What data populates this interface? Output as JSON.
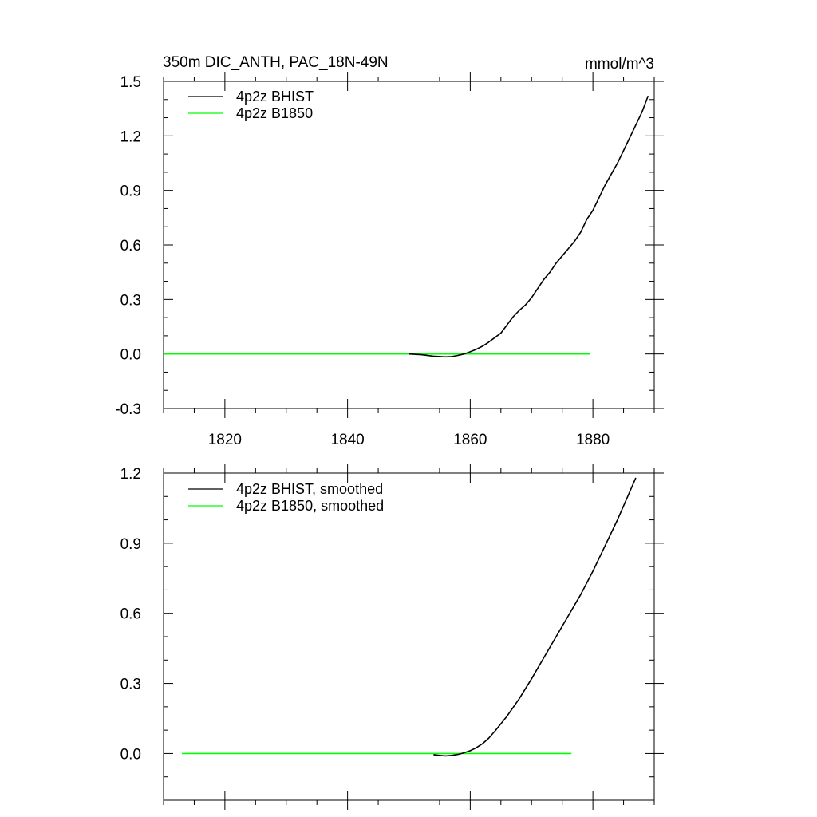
{
  "chart_data": [
    {
      "type": "line",
      "title": "350m DIC_ANTH, PAC_18N-49N",
      "units_label": "mmol/m^3",
      "xlim": [
        1810,
        1890
      ],
      "ylim": [
        -0.3,
        1.5
      ],
      "x_ticks": [
        1820,
        1840,
        1860,
        1880
      ],
      "x_tick_labels": [
        "1820",
        "1840",
        "1860",
        "1880"
      ],
      "y_ticks": [
        -0.3,
        0.0,
        0.3,
        0.6,
        0.9,
        1.2,
        1.5
      ],
      "y_tick_labels": [
        "-0.3",
        "0.0",
        "0.3",
        "0.6",
        "0.9",
        "1.2",
        "1.5"
      ],
      "legend_position": "top-left",
      "series": [
        {
          "name": "4p2z BHIST",
          "color": "#000000",
          "x": [
            1850,
            1852,
            1854,
            1856,
            1857,
            1858,
            1859,
            1860,
            1861,
            1862,
            1863,
            1864,
            1865,
            1866,
            1867,
            1868,
            1869,
            1870,
            1871,
            1872,
            1873,
            1874,
            1875,
            1876,
            1877,
            1878,
            1879,
            1880,
            1881,
            1882,
            1883,
            1884,
            1885,
            1886,
            1887,
            1888,
            1889
          ],
          "y": [
            0.0,
            -0.004,
            -0.012,
            -0.016,
            -0.014,
            -0.008,
            0.0,
            0.012,
            0.026,
            0.043,
            0.065,
            0.09,
            0.115,
            0.16,
            0.205,
            0.24,
            0.27,
            0.31,
            0.36,
            0.41,
            0.45,
            0.5,
            0.54,
            0.58,
            0.62,
            0.67,
            0.74,
            0.79,
            0.86,
            0.93,
            0.99,
            1.05,
            1.12,
            1.19,
            1.26,
            1.33,
            1.42
          ]
        },
        {
          "name": "4p2z B1850",
          "color": "#00ff00",
          "x": [
            1810,
            1879.5
          ],
          "y": [
            0.0,
            0.0
          ]
        }
      ]
    },
    {
      "type": "line",
      "xlim": [
        1810,
        1890
      ],
      "ylim": [
        -0.2,
        1.2
      ],
      "x_ticks": [
        1820,
        1840,
        1860,
        1880
      ],
      "x_tick_labels": [],
      "y_ticks": [
        0.0,
        0.3,
        0.6,
        0.9,
        1.2
      ],
      "y_tick_labels": [
        "0.0",
        "0.3",
        "0.6",
        "0.9",
        "1.2"
      ],
      "legend_position": "top-left",
      "series": [
        {
          "name": "4p2z BHIST, smoothed",
          "color": "#000000",
          "x": [
            1854,
            1855,
            1856,
            1857,
            1858,
            1859,
            1860,
            1861,
            1862,
            1863,
            1864,
            1866,
            1868,
            1870,
            1872,
            1874,
            1876,
            1878,
            1880,
            1882,
            1884,
            1886,
            1887
          ],
          "y": [
            -0.005,
            -0.008,
            -0.01,
            -0.008,
            -0.004,
            0.003,
            0.012,
            0.025,
            0.042,
            0.065,
            0.095,
            0.16,
            0.235,
            0.32,
            0.41,
            0.5,
            0.59,
            0.68,
            0.78,
            0.89,
            1.0,
            1.12,
            1.18
          ]
        },
        {
          "name": "4p2z B1850, smoothed",
          "color": "#00ff00",
          "x": [
            1813,
            1876.5
          ],
          "y": [
            0.0,
            0.0
          ]
        }
      ]
    }
  ]
}
